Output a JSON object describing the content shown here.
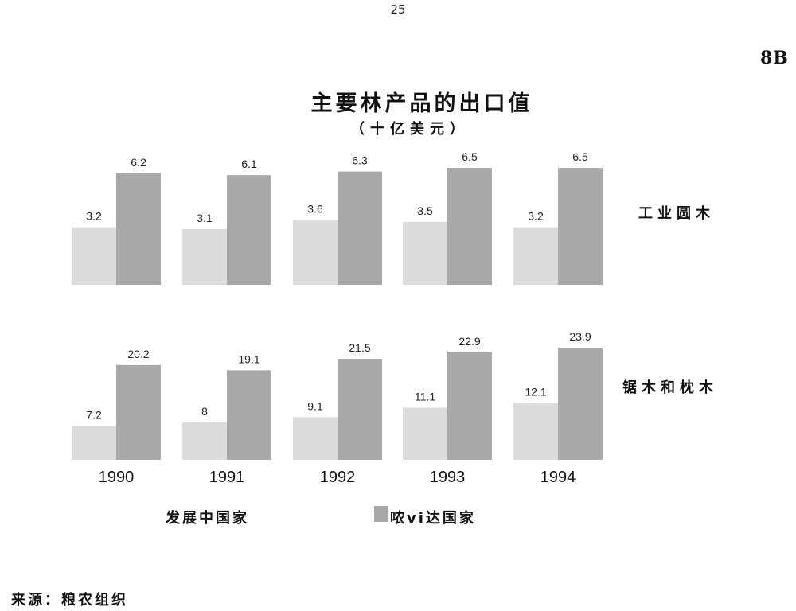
{
  "page_number": "25",
  "doc_code": "8B",
  "source_note": "来源：粮农组织",
  "colors": {
    "developing": "#dcdcdc",
    "developed": "#a9a9a9"
  },
  "chart_data": {
    "type": "bar",
    "title": "主要林产品的出口值",
    "subtitle": "（十亿美元）",
    "categories": [
      "1990",
      "1991",
      "1992",
      "1993",
      "1994"
    ],
    "legend": [
      "发展中国家",
      "哝vi达国家"
    ],
    "legend_position": "bottom",
    "grid": false,
    "panels": [
      {
        "label": "工业圆木",
        "series": [
          {
            "name": "发展中国家",
            "values": [
              3.2,
              3.1,
              3.6,
              3.5,
              3.2
            ]
          },
          {
            "name": "哝vi达国家",
            "values": [
              6.2,
              6.1,
              6.3,
              6.5,
              6.5
            ]
          }
        ]
      },
      {
        "label": "锯木和枕木",
        "series": [
          {
            "name": "发展中国家",
            "values": [
              7.2,
              8,
              9.1,
              11.1,
              12.1
            ]
          },
          {
            "name": "哝vi达国家",
            "values": [
              20.2,
              19.1,
              21.5,
              22.9,
              23.9
            ]
          }
        ]
      }
    ]
  }
}
